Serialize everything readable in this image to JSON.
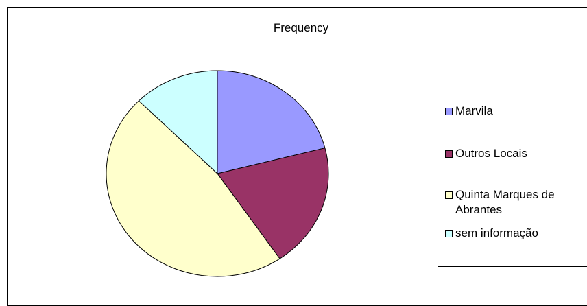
{
  "chart_data": {
    "type": "pie",
    "title": "Frequency",
    "categories": [
      "Marvila",
      "Outros Locais",
      "Quinta Marques de Abrantes",
      "sem informação"
    ],
    "values": [
      21,
      19.5,
      47,
      12.5
    ],
    "colors": [
      "#9999FF",
      "#993366",
      "#FFFFCC",
      "#CCFFFF"
    ],
    "legend_position": "right"
  }
}
